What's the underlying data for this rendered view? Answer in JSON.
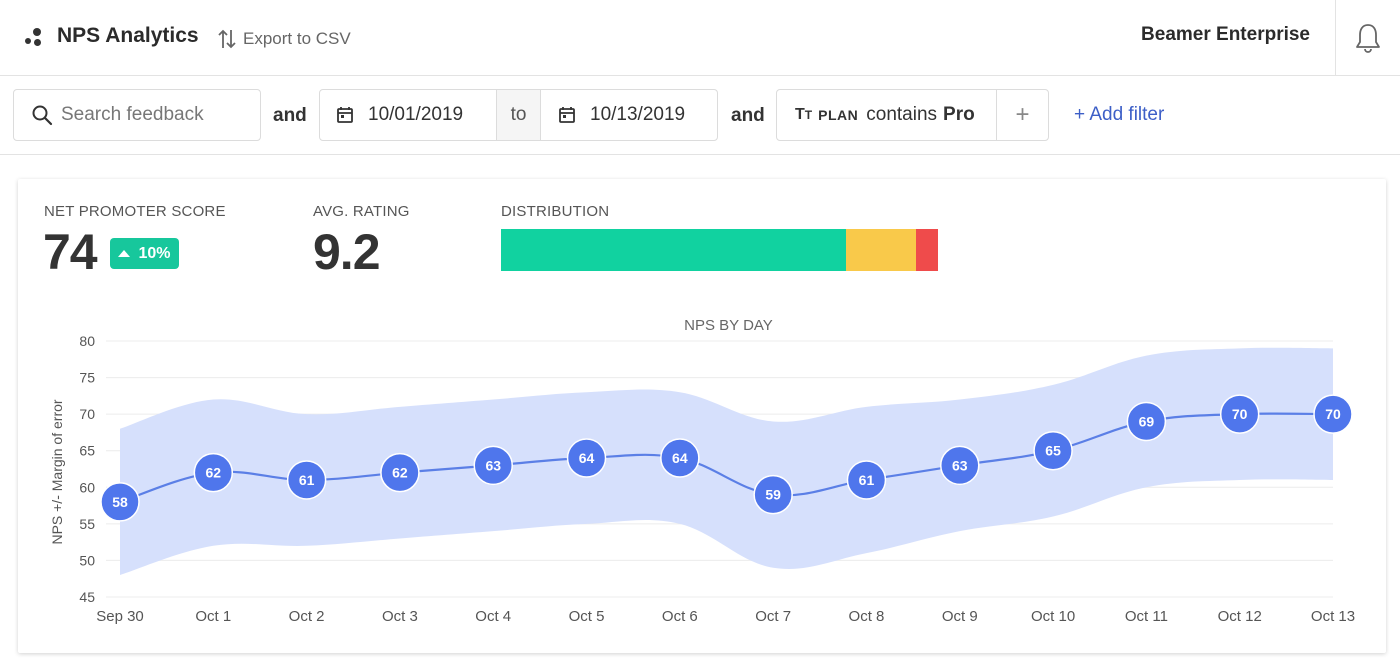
{
  "header": {
    "app_title": "NPS Analytics",
    "export_label": "Export to CSV",
    "workspace_name": "Beamer Enterprise"
  },
  "filters": {
    "search_placeholder": "Search feedback",
    "conj1": "and",
    "date_from": "10/01/2019",
    "date_to_label": "to",
    "date_to": "10/13/2019",
    "conj2": "and",
    "chip_field": "PLAN",
    "chip_op": "contains",
    "chip_value": "Pro",
    "chip_add": "+",
    "add_filter_label": "+ Add filter"
  },
  "metrics": {
    "nps_label": "NET PROMOTER SCORE",
    "nps_value": "74",
    "nps_change": "10%",
    "rating_label": "AVG. RATING",
    "rating_value": "9.2",
    "distribution_label": "DISTRIBUTION",
    "distribution": [
      {
        "name": "promoters",
        "fraction": 0.79,
        "color": "#11d2a0"
      },
      {
        "name": "passives",
        "fraction": 0.16,
        "color": "#f9c94a"
      },
      {
        "name": "detractors",
        "fraction": 0.05,
        "color": "#ef4b4b"
      }
    ]
  },
  "chart_data": {
    "type": "line",
    "title": "NPS BY DAY",
    "xlabel": "",
    "ylabel": "NPS +/- Margin of error",
    "categories": [
      "Sep 30",
      "Oct 1",
      "Oct 2",
      "Oct 3",
      "Oct 4",
      "Oct 5",
      "Oct 6",
      "Oct 7",
      "Oct 8",
      "Oct 9",
      "Oct 10",
      "Oct 11",
      "Oct 12",
      "Oct 13"
    ],
    "values": [
      58,
      62,
      61,
      62,
      63,
      64,
      64,
      59,
      61,
      63,
      65,
      69,
      70,
      70
    ],
    "upper": [
      68,
      72,
      70,
      71,
      72,
      73,
      73,
      69,
      71,
      72,
      74,
      78,
      79,
      79
    ],
    "lower": [
      48,
      52,
      52,
      53,
      54,
      55,
      55,
      49,
      51,
      54,
      56,
      60,
      61,
      61
    ],
    "ylim": [
      45,
      80
    ],
    "yticks": [
      45,
      50,
      55,
      60,
      65,
      70,
      75,
      80
    ],
    "grid": true,
    "line_color": "#5b7fe6",
    "band_color": "#d4defc",
    "marker_color": "#4f76ec"
  }
}
